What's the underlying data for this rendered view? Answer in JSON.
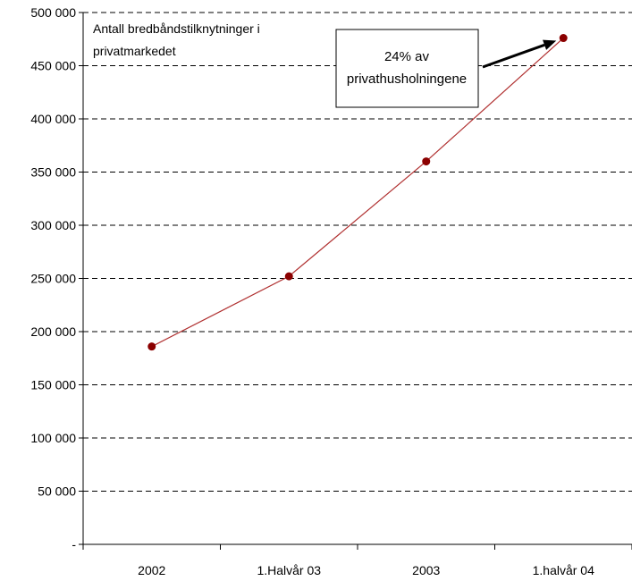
{
  "chart_data": {
    "type": "line",
    "title_lines": [
      "Antall bredbåndstilknytninger i",
      "privatmarkedet"
    ],
    "categories": [
      "2002",
      "1.Halvår 03",
      "2003",
      "1.halvår 04"
    ],
    "series": [
      {
        "values": [
          186000,
          252000,
          360000,
          476000
        ]
      }
    ],
    "ylim": [
      0,
      500000
    ],
    "yticks": [
      "-",
      "50 000",
      "100 000",
      "150 000",
      "200 000",
      "250 000",
      "300 000",
      "350 000",
      "400 000",
      "450 000",
      "500 000"
    ],
    "ytick_values": [
      0,
      50000,
      100000,
      150000,
      200000,
      250000,
      300000,
      350000,
      400000,
      450000,
      500000
    ],
    "grid": "dashed horizontal",
    "annotation": {
      "lines": [
        "24% av",
        "privathusholningene"
      ],
      "points_to_index": 3
    },
    "colors": {
      "line": "#b03030",
      "marker": "#8b0000",
      "grid": "#000000",
      "arrow": "#000000"
    }
  }
}
